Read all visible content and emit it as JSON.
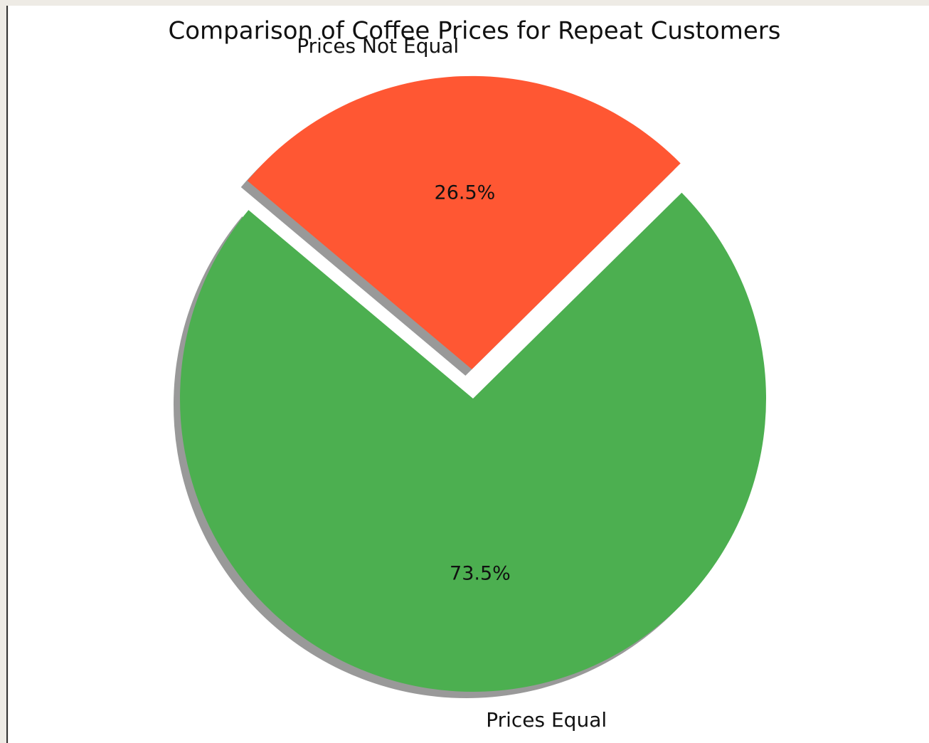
{
  "chart_data": {
    "type": "pie",
    "title": "Comparison of Coffee Prices for Repeat Customers",
    "categories": [
      "Prices Equal",
      "Prices Not Equal"
    ],
    "values": [
      73.5,
      26.5
    ],
    "value_labels": [
      "73.5%",
      "26.5%"
    ],
    "colors": [
      "#4caf50",
      "#ff5733"
    ],
    "explode": [
      0,
      0.1
    ],
    "startangle": 140,
    "shadow": true
  }
}
